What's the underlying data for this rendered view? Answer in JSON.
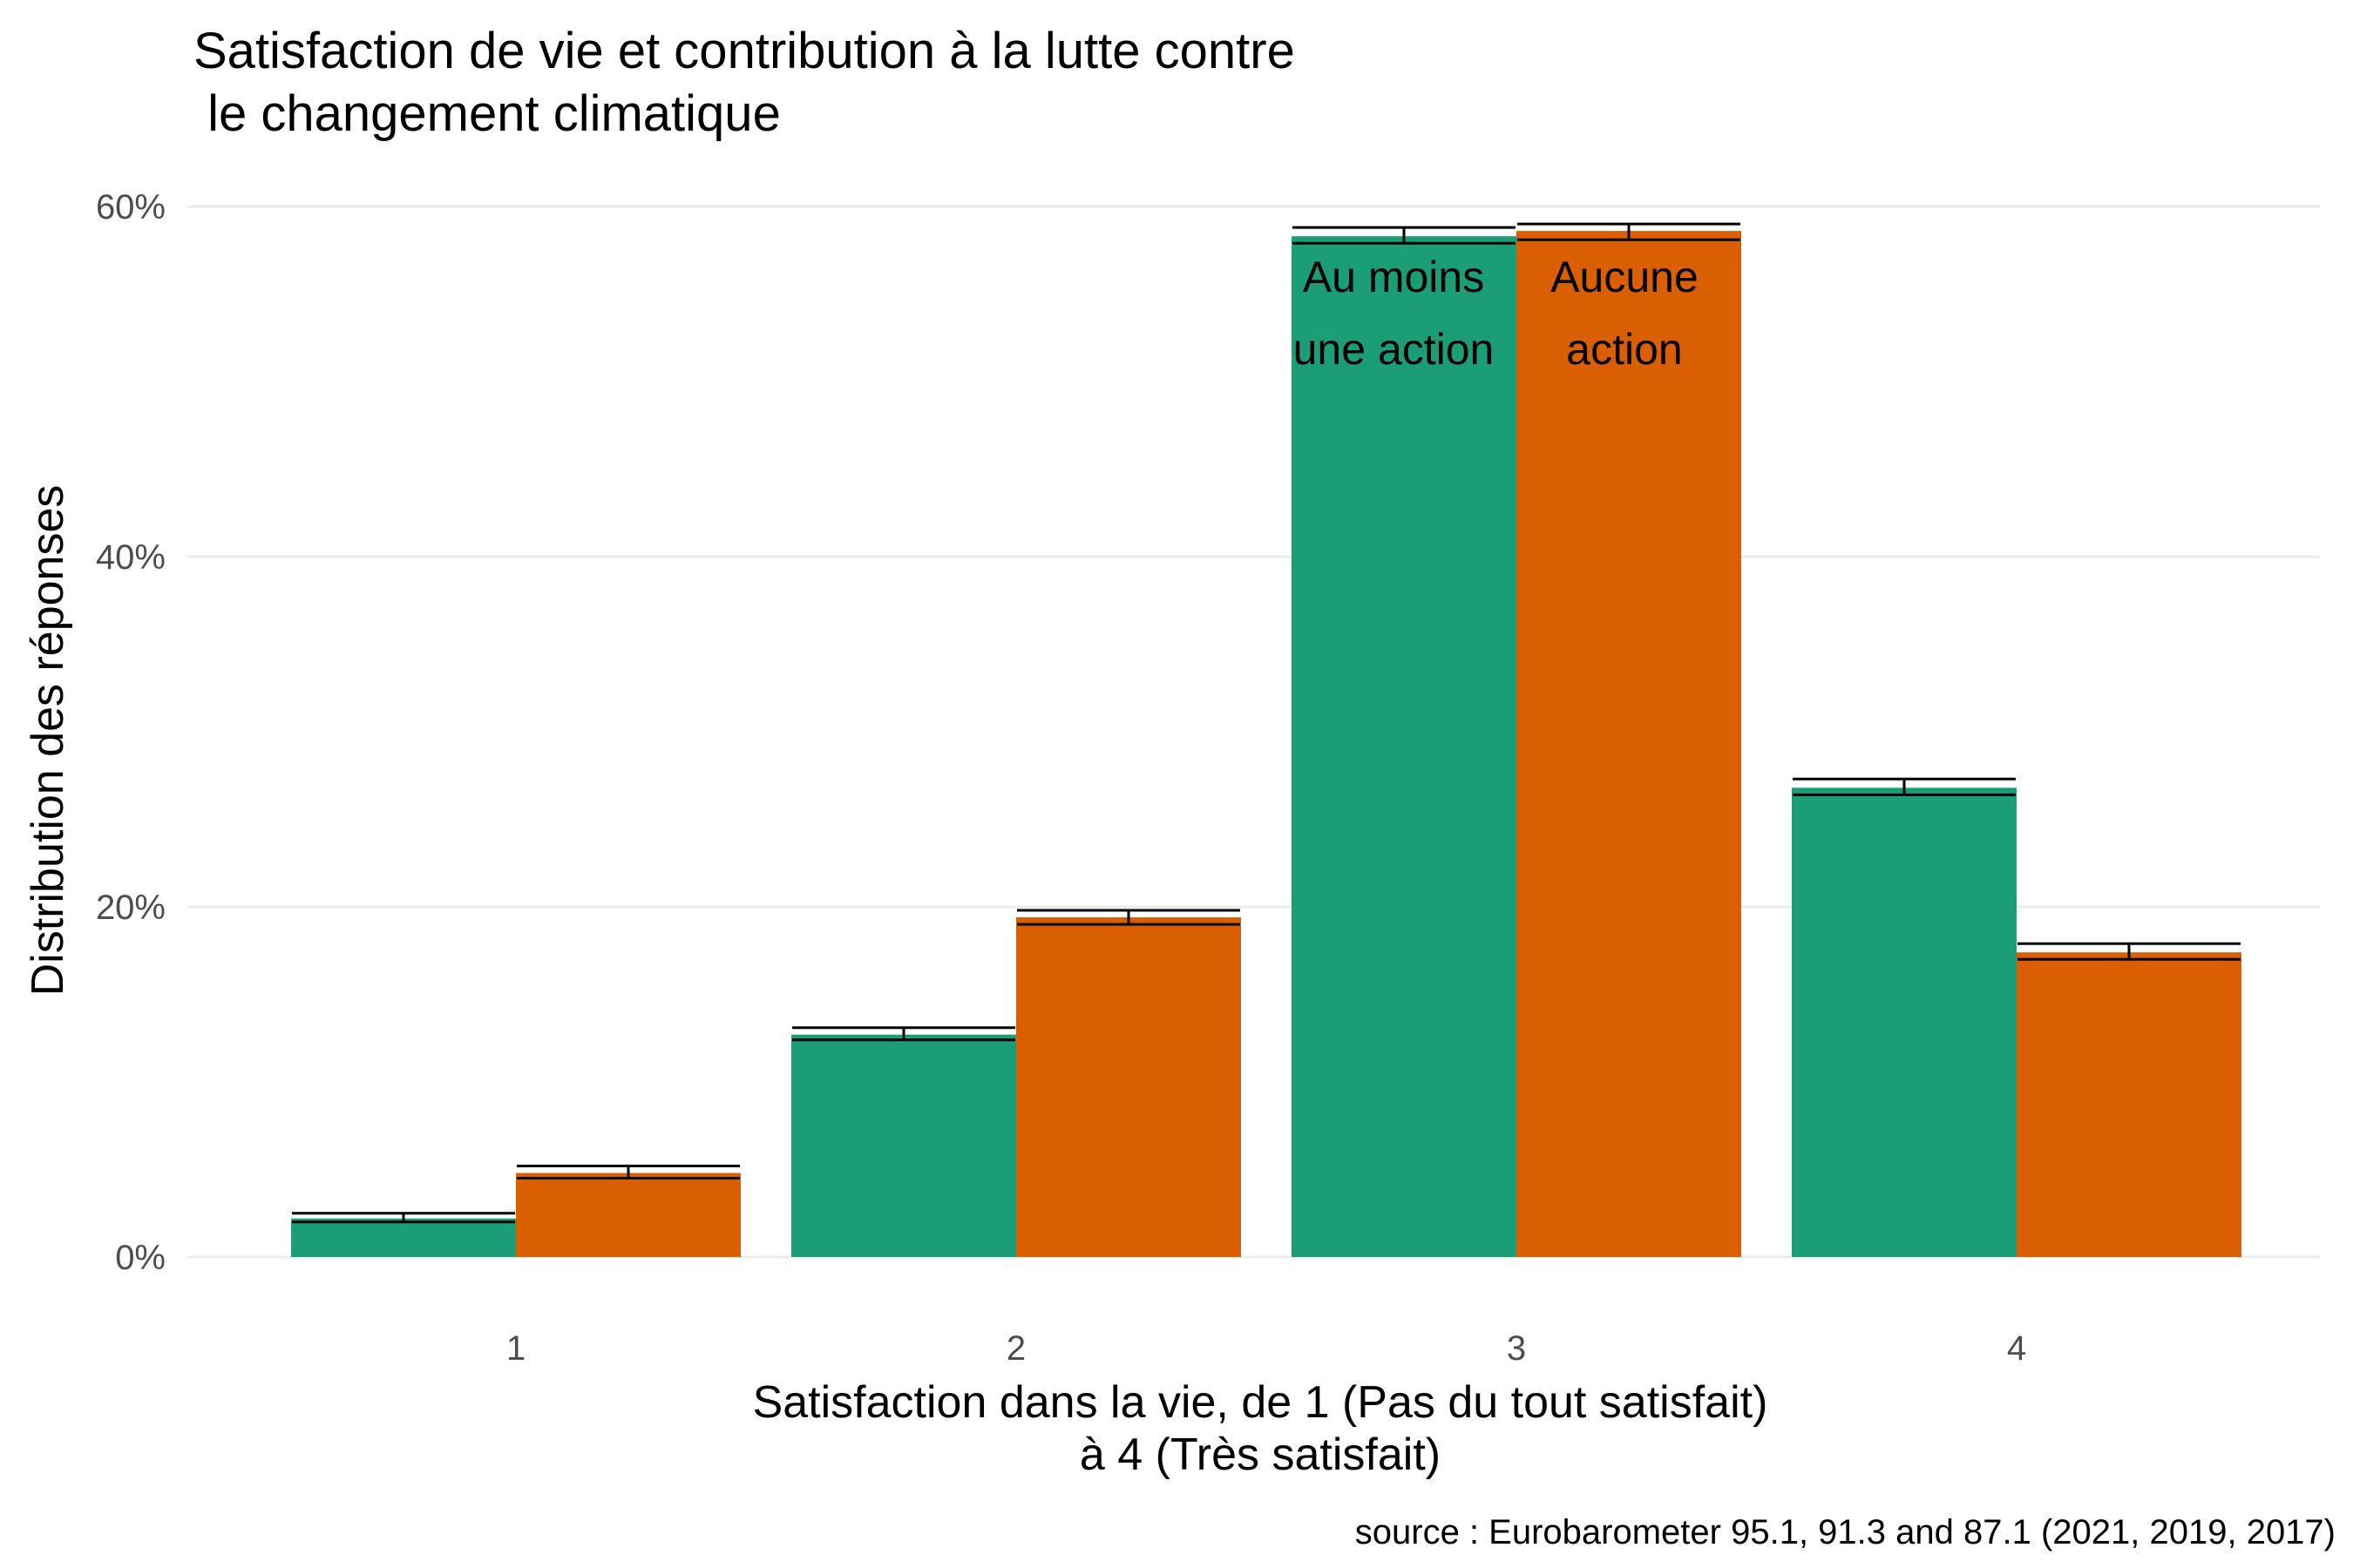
{
  "chart_data": {
    "type": "bar",
    "title_lines": [
      "Satisfaction de vie et contribution à la lutte contre",
      " le changement climatique"
    ],
    "xlabel_lines": [
      "Satisfaction dans la vie, de 1 (Pas du tout satisfait)",
      "à 4 (Très satisfait)"
    ],
    "ylabel": "Distribution des réponses",
    "caption": "source : Eurobarometer 95.1, 91.3 and 87.1 (2021, 2019, 2017)",
    "categories": [
      "1",
      "2",
      "3",
      "4"
    ],
    "yticks": [
      {
        "value": 0,
        "label": "0%"
      },
      {
        "value": 20,
        "label": "20%"
      },
      {
        "value": 40,
        "label": "40%"
      },
      {
        "value": 60,
        "label": "60%"
      }
    ],
    "ylim": [
      0,
      63
    ],
    "grid": true,
    "legend": "none",
    "series": [
      {
        "name_lines": [
          "Au moins",
          "une action"
        ],
        "color": "#1b9e77",
        "values": [
          2.2,
          12.7,
          58.3,
          26.8
        ],
        "err_low": [
          2.0,
          12.4,
          57.9,
          26.4
        ],
        "err_high": [
          2.5,
          13.1,
          58.8,
          27.3
        ]
      },
      {
        "name_lines": [
          "Aucune",
          "action"
        ],
        "color": "#d95f02",
        "values": [
          4.8,
          19.4,
          58.6,
          17.4
        ],
        "err_low": [
          4.5,
          19.0,
          58.1,
          17.0
        ],
        "err_high": [
          5.2,
          19.8,
          59.0,
          17.9
        ]
      }
    ]
  }
}
